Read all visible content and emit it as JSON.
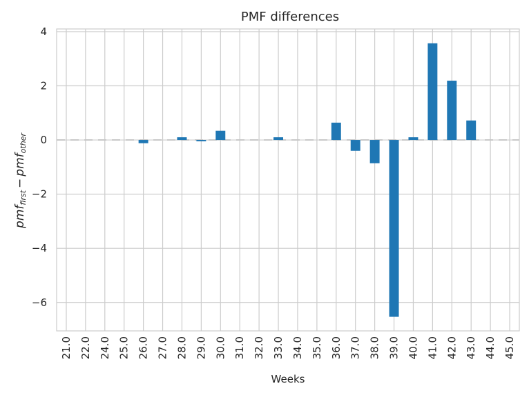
{
  "chart_data": {
    "type": "bar",
    "title": "PMF differences",
    "xlabel": "Weeks",
    "ylabel": {
      "base1": "pmf",
      "sub1": "first",
      "operator": "−",
      "base2": "pmf",
      "sub2": "other"
    },
    "categories": [
      "21.0",
      "22.0",
      "24.0",
      "25.0",
      "26.0",
      "27.0",
      "28.0",
      "29.0",
      "30.0",
      "31.0",
      "32.0",
      "33.0",
      "34.0",
      "35.0",
      "36.0",
      "37.0",
      "38.0",
      "39.0",
      "40.0",
      "41.0",
      "42.0",
      "43.0",
      "44.0",
      "45.0"
    ],
    "values": [
      0.0,
      0.0,
      0.0,
      0.0,
      -0.12,
      0.0,
      0.1,
      -0.05,
      0.34,
      0.0,
      0.0,
      0.1,
      0.0,
      0.0,
      0.64,
      -0.4,
      -0.86,
      -6.53,
      0.1,
      3.57,
      2.19,
      0.72,
      0.0,
      0.0
    ],
    "ylim": [
      -7.05,
      4.1
    ],
    "yticks": [
      -6,
      -4,
      -2,
      0,
      2,
      4
    ],
    "ytick_labels": [
      "−6",
      "−4",
      "−2",
      "0",
      "2",
      "4"
    ],
    "bar_color": "#1f77b4",
    "grid": true,
    "zero_line": "dashed"
  }
}
